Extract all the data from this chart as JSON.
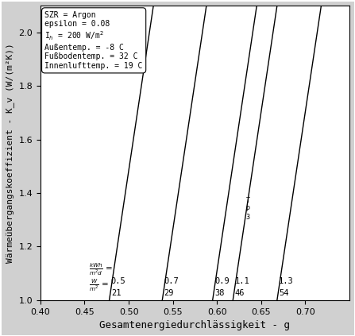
{
  "title": "",
  "xlabel": "Gesamtenergiedurchlässigkeit - g",
  "ylabel": "Wärmeübergangskoeffizient - K_v (W/(m²K))",
  "xlim": [
    0.4,
    0.75
  ],
  "ylim": [
    1.0,
    2.1
  ],
  "xticks": [
    0.4,
    0.45,
    0.5,
    0.55,
    0.6,
    0.65,
    0.7
  ],
  "yticks": [
    1.0,
    1.2,
    1.4,
    1.6,
    1.8,
    2.0
  ],
  "legend_text": [
    "SZR = Argon",
    "epsilon = 0.08",
    "I_h = 200 W/m²",
    "Außentemp. = -8 C",
    "Fußbodentemp. = 32 C",
    "Innenlufttemp. = 19 C"
  ],
  "lines": [
    {
      "kwh": 0.5,
      "wm2": 21,
      "x": [
        0.478,
        0.528
      ],
      "y": [
        1.0,
        2.1
      ]
    },
    {
      "kwh": 0.7,
      "wm2": 29,
      "x": [
        0.538,
        0.588
      ],
      "y": [
        1.0,
        2.1
      ]
    },
    {
      "kwh": 0.9,
      "wm2": 38,
      "x": [
        0.595,
        0.645
      ],
      "y": [
        1.0,
        2.1
      ]
    },
    {
      "kwh": 1.1,
      "wm2": 46,
      "x": [
        0.618,
        0.668
      ],
      "y": [
        1.0,
        2.1
      ]
    },
    {
      "kwh": 1.3,
      "wm2": 54,
      "x": [
        0.668,
        0.718
      ],
      "y": [
        1.0,
        2.1
      ]
    }
  ],
  "line_color": "#000000",
  "bg_color": "#ffffff",
  "plot_bg": "#ffffff"
}
